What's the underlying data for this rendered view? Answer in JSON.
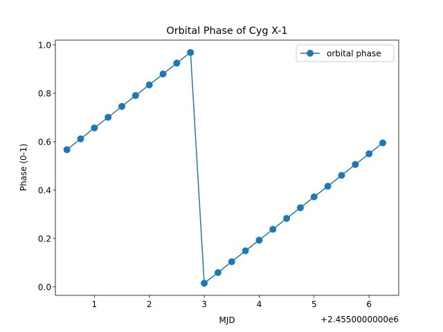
{
  "chart_data": {
    "type": "line",
    "title": "Orbital Phase of Cyg X-1",
    "xlabel": "MJD",
    "ylabel": "Phase (0-1)",
    "x_offset_label": "+2.4550000000e6",
    "xlim": [
      0.29,
      6.54
    ],
    "ylim": [
      -0.035,
      1.02
    ],
    "xticks": [
      1,
      2,
      3,
      4,
      5,
      6
    ],
    "xtick_labels": [
      "1",
      "2",
      "3",
      "4",
      "5",
      "6"
    ],
    "yticks": [
      0.0,
      0.2,
      0.4,
      0.6,
      0.8,
      1.0
    ],
    "ytick_labels": [
      "0.0",
      "0.2",
      "0.4",
      "0.6",
      "0.8",
      "1.0"
    ],
    "grid": false,
    "legend_position": "top-right",
    "series": [
      {
        "name": "orbital phase",
        "color": "#1f77b4",
        "marker": "circle",
        "x": [
          0.5,
          0.75,
          1.0,
          1.25,
          1.5,
          1.75,
          2.0,
          2.25,
          2.5,
          2.75,
          3.0,
          3.25,
          3.5,
          3.75,
          4.0,
          4.25,
          4.5,
          4.75,
          5.0,
          5.25,
          5.5,
          5.75,
          6.0,
          6.25
        ],
        "y": [
          0.567,
          0.612,
          0.657,
          0.701,
          0.746,
          0.791,
          0.835,
          0.88,
          0.925,
          0.969,
          0.015,
          0.059,
          0.104,
          0.149,
          0.193,
          0.238,
          0.283,
          0.327,
          0.372,
          0.416,
          0.461,
          0.506,
          0.55,
          0.595
        ]
      }
    ]
  }
}
